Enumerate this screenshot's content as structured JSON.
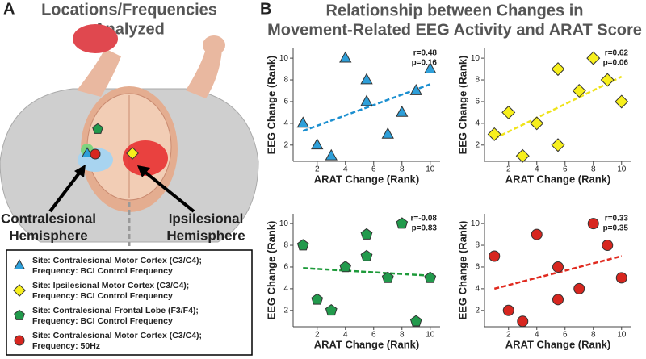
{
  "figure": {
    "panel_a_label": "A",
    "panel_b_label": "B",
    "panel_a_title": [
      "Locations/Frequencies",
      "Analyzed"
    ],
    "panel_b_title": [
      "Relationship between Changes in",
      "Movement-Related EEG Activity and ARAT Score"
    ],
    "hemisphere_labels": [
      [
        "Contralesional",
        "Hemisphere"
      ],
      [
        "Ipsilesional",
        "Hemisphere"
      ]
    ],
    "legend": [
      [
        "Site: Contralesional Motor Cortex (C3/C4);",
        "Frequency: BCI Control Frequency"
      ],
      [
        "Site: Ipsilesional Motor Cortex (C3/C4);",
        "Frequency: BCI Control Frequency"
      ],
      [
        "Site: Contralesional Frontal Lobe (F3/F4);",
        "Frequency: BCI Control Frequency"
      ],
      [
        "Site: Contralesional Motor Cortex (C3/C4);",
        "Frequency: 50Hz"
      ]
    ]
  },
  "chart_data": [
    {
      "type": "scatter",
      "xlabel": "ARAT Change (Rank)",
      "ylabel": "EEG Change (Rank)",
      "annotations": [
        "r=0.48",
        "p=0.16"
      ],
      "marker": "triangle",
      "color": "#2e9fd9",
      "x": [
        1,
        2,
        3,
        4,
        5.5,
        5.5,
        7,
        8,
        9,
        10
      ],
      "values": [
        4,
        2,
        1,
        10,
        8,
        6,
        3,
        5,
        7,
        9
      ],
      "trend": {
        "x": [
          1,
          10
        ],
        "values": [
          3.3,
          7.6
        ],
        "color": "#1b8fd0"
      },
      "xlim": [
        0.3,
        10.7
      ],
      "ylim": [
        0.5,
        10.9
      ],
      "xticks": [
        2,
        4,
        6,
        8,
        10
      ],
      "yticks": [
        2,
        4,
        6,
        8,
        10
      ]
    },
    {
      "type": "scatter",
      "xlabel": "ARAT Change (Rank)",
      "ylabel": "EEG Change (Rank)",
      "annotations": [
        "r=0.62",
        "p=0.06"
      ],
      "marker": "diamond",
      "color": "#f7ef1c",
      "x": [
        1,
        2,
        3,
        4,
        5.5,
        5.5,
        7,
        8,
        9,
        10
      ],
      "values": [
        3,
        5,
        1,
        4,
        9,
        2,
        7,
        10,
        8,
        6
      ],
      "trend": {
        "x": [
          1,
          10
        ],
        "values": [
          2.6,
          8.3
        ],
        "color": "#efe31a"
      },
      "xlim": [
        0.3,
        10.7
      ],
      "ylim": [
        0.5,
        10.9
      ],
      "xticks": [
        2,
        4,
        6,
        8,
        10
      ],
      "yticks": [
        2,
        4,
        6,
        8,
        10
      ]
    },
    {
      "type": "scatter",
      "xlabel": "ARAT Change (Rank)",
      "ylabel": "EEG Change (Rank)",
      "annotations": [
        "r=-0.08",
        "p=0.83"
      ],
      "marker": "pentagon",
      "color": "#229a4c",
      "x": [
        1,
        2,
        3,
        4,
        5.5,
        5.5,
        7,
        8,
        9,
        10
      ],
      "values": [
        8,
        3,
        2,
        6,
        9,
        7,
        5,
        10,
        1,
        5
      ],
      "trend": {
        "x": [
          1,
          10
        ],
        "values": [
          5.9,
          5.2
        ],
        "color": "#1e9a3a"
      },
      "xlim": [
        0.3,
        10.7
      ],
      "ylim": [
        0.5,
        10.9
      ],
      "xticks": [
        2,
        4,
        6,
        8,
        10
      ],
      "yticks": [
        2,
        4,
        6,
        8,
        10
      ]
    },
    {
      "type": "scatter",
      "xlabel": "ARAT Change (Rank)",
      "ylabel": "EEG Change (Rank)",
      "annotations": [
        "r=0.33",
        "p=0.35"
      ],
      "marker": "circle",
      "color": "#d7261f",
      "x": [
        1,
        2,
        3,
        4,
        5.5,
        5.5,
        7,
        8,
        9,
        10
      ],
      "values": [
        7,
        2,
        1,
        9,
        6,
        3,
        4,
        10,
        8,
        5
      ],
      "trend": {
        "x": [
          1,
          10
        ],
        "values": [
          4.0,
          7.0
        ],
        "color": "#e02a1f"
      },
      "xlim": [
        0.3,
        10.7
      ],
      "ylim": [
        0.5,
        10.9
      ],
      "xticks": [
        2,
        4,
        6,
        8,
        10
      ],
      "yticks": [
        2,
        4,
        6,
        8,
        10
      ]
    }
  ]
}
